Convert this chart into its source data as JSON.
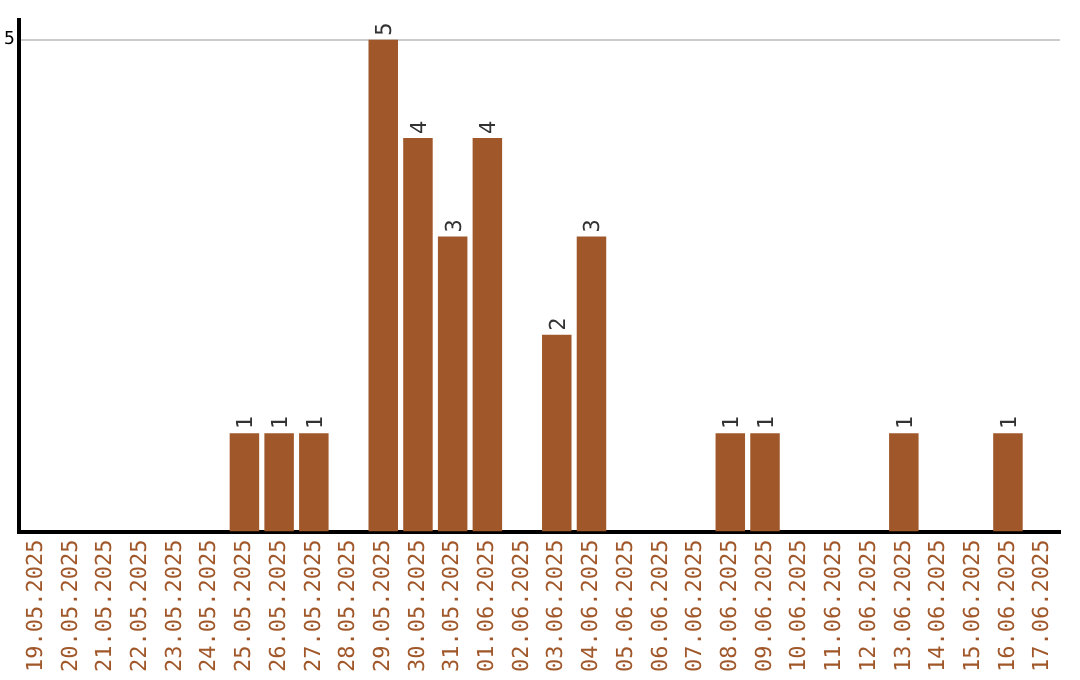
{
  "chart_data": {
    "type": "bar",
    "categories": [
      "19.05.2025",
      "20.05.2025",
      "21.05.2025",
      "22.05.2025",
      "23.05.2025",
      "24.05.2025",
      "25.05.2025",
      "26.05.2025",
      "27.05.2025",
      "28.05.2025",
      "29.05.2025",
      "30.05.2025",
      "31.05.2025",
      "01.06.2025",
      "02.06.2025",
      "03.06.2025",
      "04.06.2025",
      "05.06.2025",
      "06.06.2025",
      "07.06.2025",
      "08.06.2025",
      "09.06.2025",
      "10.06.2025",
      "11.06.2025",
      "12.06.2025",
      "13.06.2025",
      "14.06.2025",
      "15.06.2025",
      "16.06.2025",
      "17.06.2025"
    ],
    "values": [
      0,
      0,
      0,
      0,
      0,
      0,
      1,
      1,
      1,
      0,
      5,
      4,
      3,
      4,
      0,
      2,
      3,
      0,
      0,
      0,
      1,
      1,
      0,
      0,
      0,
      1,
      0,
      0,
      1,
      0
    ],
    "value_labels": [
      null,
      null,
      null,
      null,
      null,
      null,
      "1",
      "1",
      "1",
      null,
      "5",
      "4",
      "3",
      "4",
      null,
      "2",
      "3",
      null,
      null,
      null,
      "1",
      "1",
      null,
      null,
      null,
      "1",
      null,
      null,
      "1",
      null
    ],
    "color": "#a0572a",
    "ylim": [
      0,
      5.2
    ],
    "yticks": [
      5
    ],
    "grid": "y",
    "legend": false
  }
}
